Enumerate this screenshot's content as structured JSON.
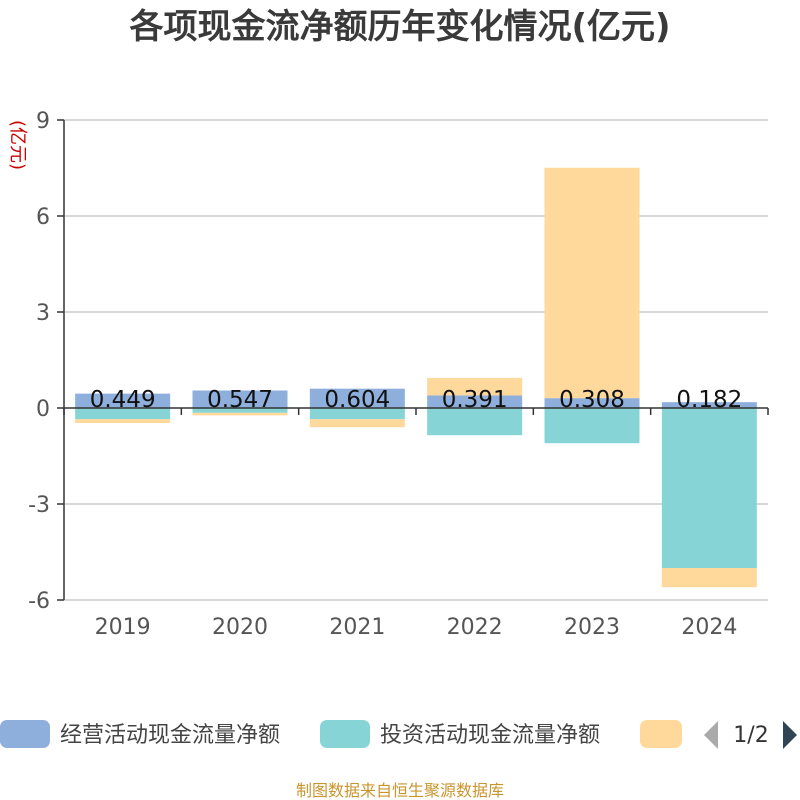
{
  "chart_data": {
    "type": "bar",
    "stacked": true,
    "title": "各项现金流净额历年变化情况(亿元)",
    "ylabel": "(亿元)",
    "xlabel": "",
    "categories": [
      "2019",
      "2020",
      "2021",
      "2022",
      "2023",
      "2024"
    ],
    "ylim": [
      -6,
      9
    ],
    "yticks": [
      -6,
      -3,
      0,
      3,
      6,
      9
    ],
    "grid": true,
    "series": [
      {
        "name": "经营活动现金流量净额",
        "color": "#8eaedb",
        "values": [
          0.449,
          0.547,
          0.604,
          0.391,
          0.308,
          0.182
        ],
        "labels": [
          "0.449",
          "0.547",
          "0.604",
          "0.391",
          "0.308",
          "0.182"
        ]
      },
      {
        "name": "投资活动现金流量净额",
        "color": "#86d4d6",
        "values": [
          -0.35,
          -0.15,
          -0.35,
          -0.85,
          -1.1,
          -5.0
        ]
      },
      {
        "color": "#ffd89b",
        "values": [
          -0.12,
          -0.08,
          -0.25,
          0.55,
          7.2,
          -0.6
        ]
      }
    ],
    "legend": {
      "position": "bottom",
      "page": "1/2"
    }
  },
  "source_note": "制图数据来自恒生聚源数据库"
}
